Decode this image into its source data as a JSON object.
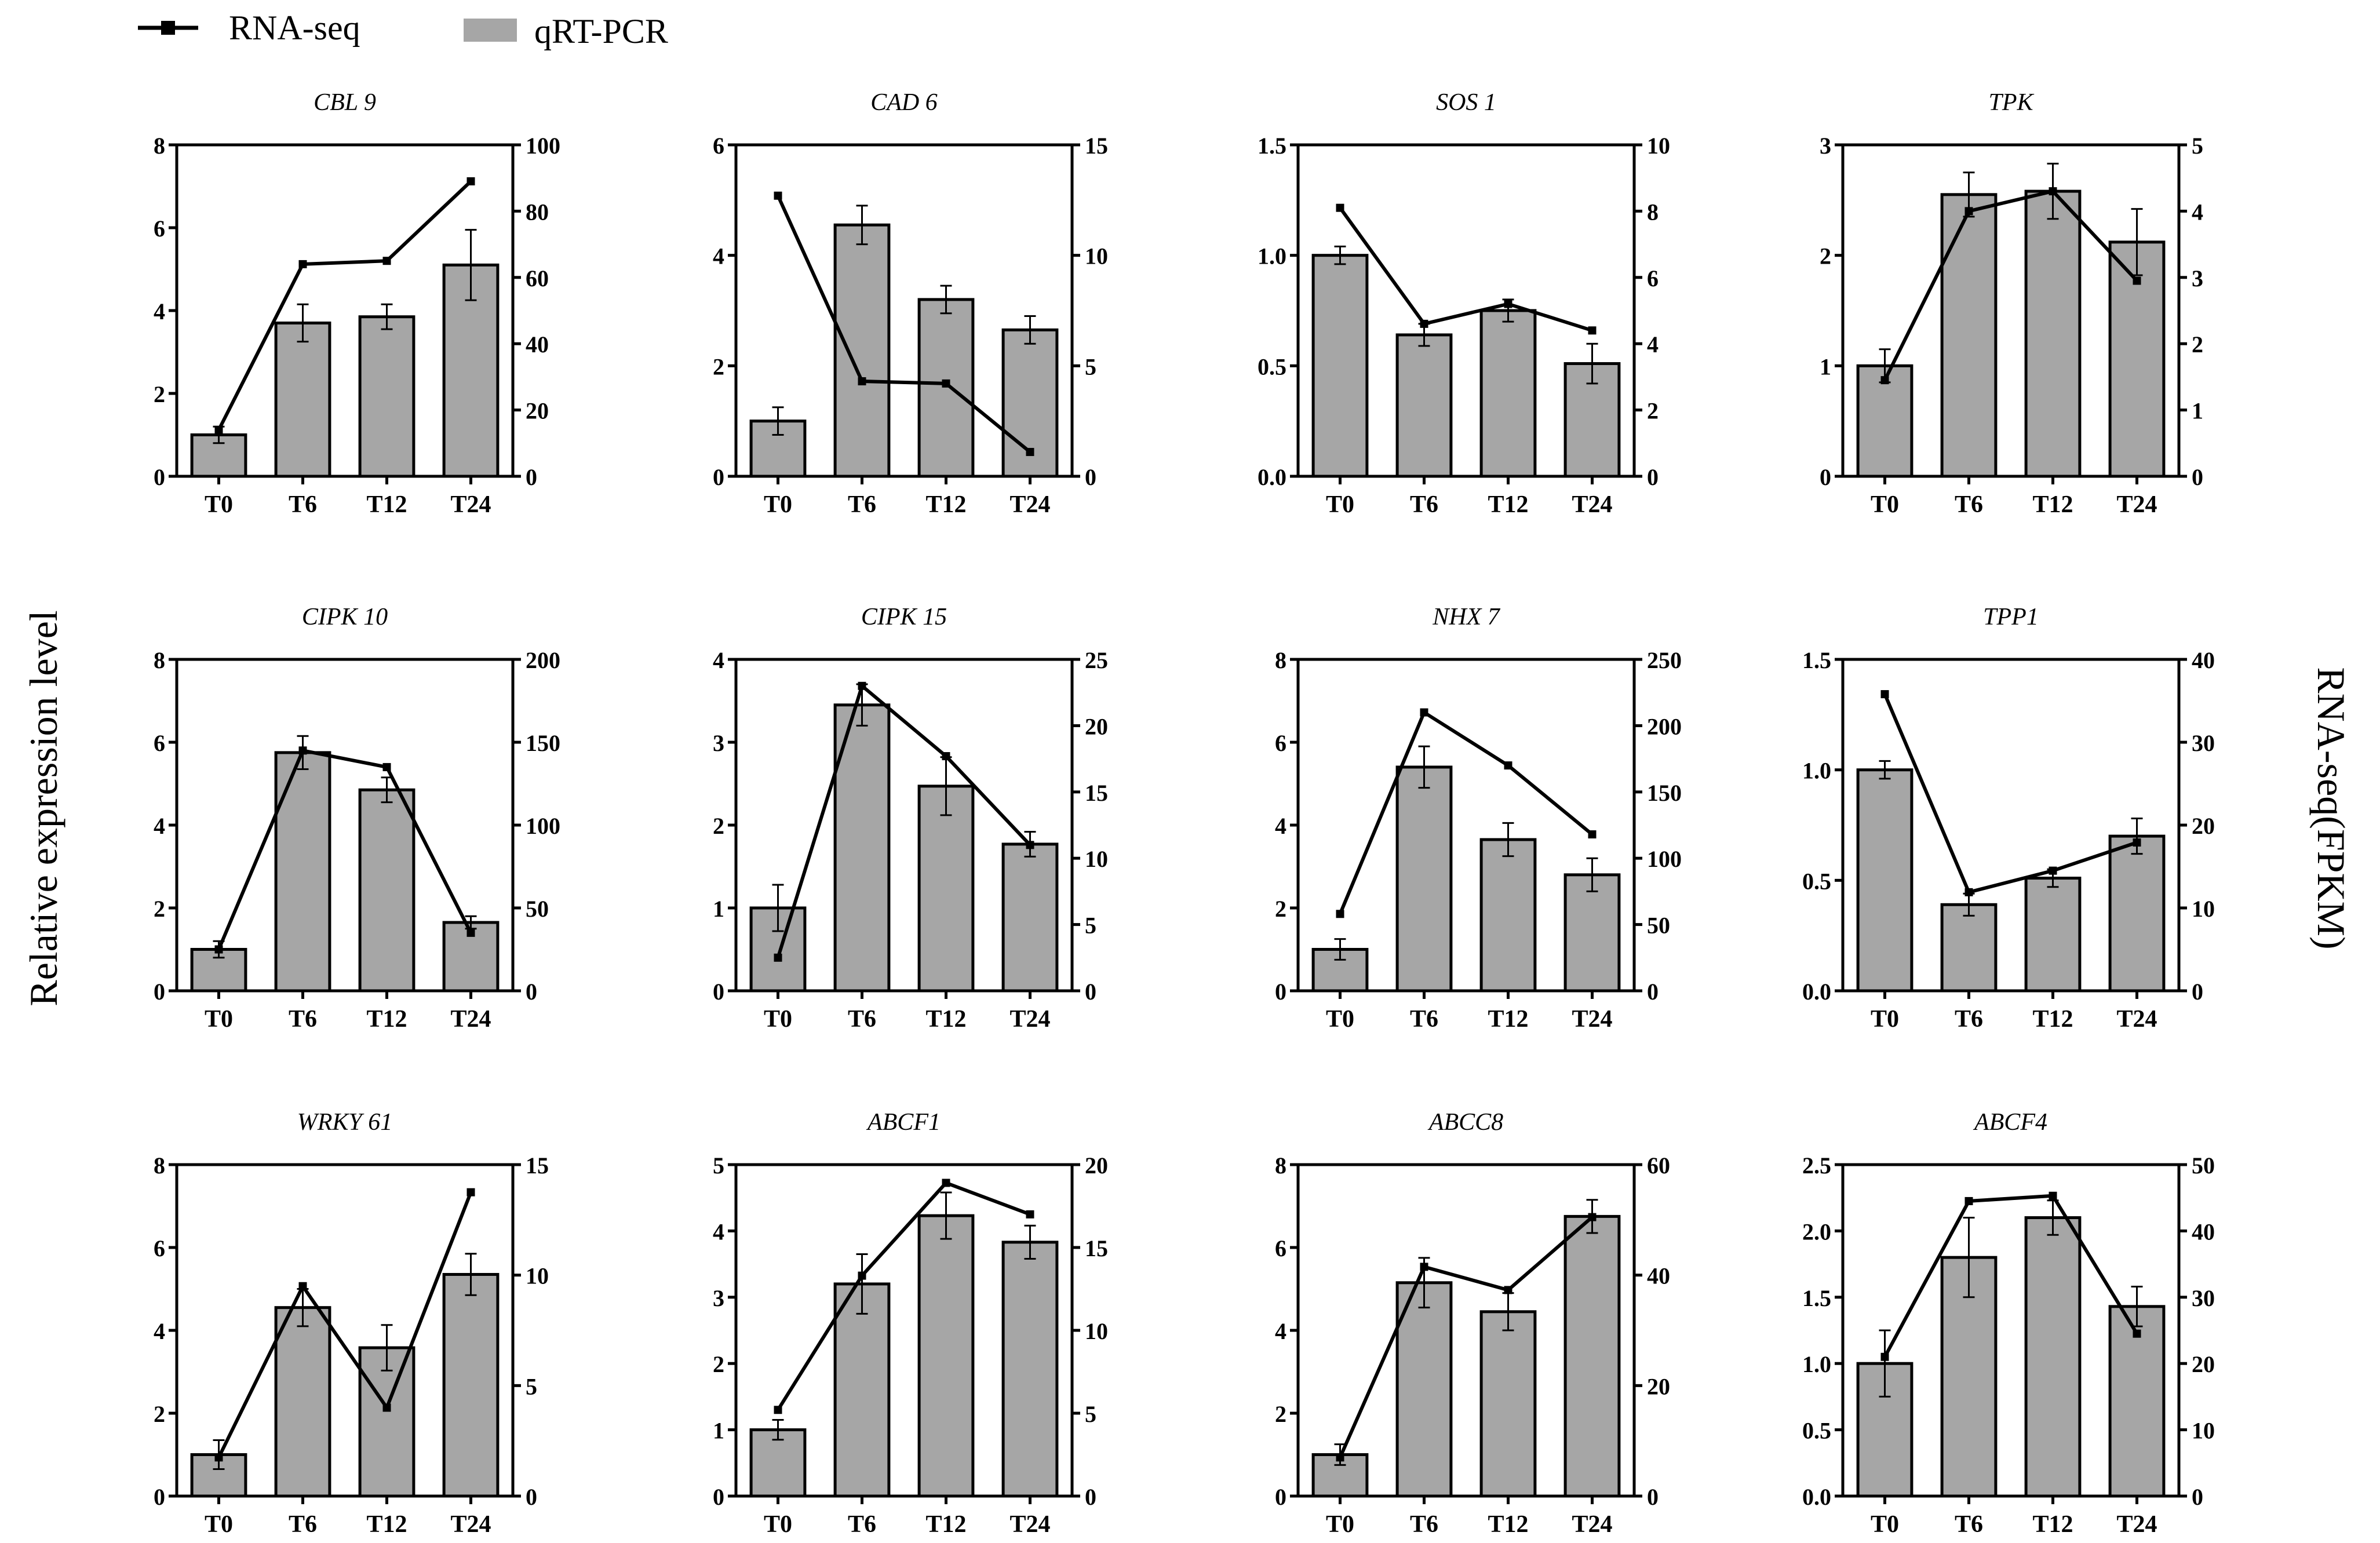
{
  "legend": {
    "line_label": "RNA-seq",
    "bar_label": "qRT-PCR"
  },
  "y_left_label": "Relative expression level",
  "y_right_label": "RNA-seq(FPKM)",
  "colors": {
    "bar": "#a6a6a6",
    "line": "#000000"
  },
  "chart_data": [
    {
      "type": "bar+line",
      "title": "CBL 9",
      "categories": [
        "T0",
        "T6",
        "T12",
        "T24"
      ],
      "series": [
        {
          "name": "qRT-PCR",
          "axis": "left",
          "values": [
            1.0,
            3.7,
            3.85,
            5.1
          ],
          "errors": [
            0.2,
            0.45,
            0.3,
            0.85
          ]
        },
        {
          "name": "RNA-seq",
          "axis": "right",
          "values": [
            14,
            64,
            65,
            89
          ]
        }
      ],
      "ylim_left": [
        0,
        8
      ],
      "yticks_left": [
        0,
        2,
        4,
        6,
        8
      ],
      "ytick_labels_left": [
        "0",
        "2",
        "4",
        "6",
        "8"
      ],
      "ylim_right": [
        0,
        100
      ],
      "yticks_right": [
        0,
        20,
        40,
        60,
        80,
        100
      ],
      "ytick_labels_right": [
        "0",
        "20",
        "40",
        "60",
        "80",
        "100"
      ]
    },
    {
      "type": "bar+line",
      "title": "CAD 6",
      "categories": [
        "T0",
        "T6",
        "T12",
        "T24"
      ],
      "series": [
        {
          "name": "qRT-PCR",
          "axis": "left",
          "values": [
            1.0,
            4.55,
            3.2,
            2.65
          ],
          "errors": [
            0.25,
            0.35,
            0.25,
            0.25
          ]
        },
        {
          "name": "RNA-seq",
          "axis": "right",
          "values": [
            12.7,
            4.3,
            4.2,
            1.1
          ]
        }
      ],
      "ylim_left": [
        0,
        6
      ],
      "yticks_left": [
        0,
        2,
        4,
        6
      ],
      "ytick_labels_left": [
        "0",
        "2",
        "4",
        "6"
      ],
      "ylim_right": [
        0,
        15
      ],
      "yticks_right": [
        0,
        5,
        10,
        15
      ],
      "ytick_labels_right": [
        "0",
        "5",
        "10",
        "15"
      ]
    },
    {
      "type": "bar+line",
      "title": "SOS 1",
      "categories": [
        "T0",
        "T6",
        "T12",
        "T24"
      ],
      "series": [
        {
          "name": "qRT-PCR",
          "axis": "left",
          "values": [
            1.0,
            0.64,
            0.75,
            0.51
          ],
          "errors": [
            0.04,
            0.05,
            0.05,
            0.09
          ]
        },
        {
          "name": "RNA-seq",
          "axis": "right",
          "values": [
            8.1,
            4.6,
            5.2,
            4.4
          ]
        }
      ],
      "ylim_left": [
        0,
        1.5
      ],
      "yticks_left": [
        0,
        0.5,
        1.0,
        1.5
      ],
      "ytick_labels_left": [
        "0.0",
        "0.5",
        "1.0",
        "1.5"
      ],
      "ylim_right": [
        0,
        10
      ],
      "yticks_right": [
        0,
        2,
        4,
        6,
        8,
        10
      ],
      "ytick_labels_right": [
        "0",
        "2",
        "4",
        "6",
        "8",
        "10"
      ]
    },
    {
      "type": "bar+line",
      "title": "TPK",
      "categories": [
        "T0",
        "T6",
        "T12",
        "T24"
      ],
      "series": [
        {
          "name": "qRT-PCR",
          "axis": "left",
          "values": [
            1.0,
            2.55,
            2.58,
            2.12
          ],
          "errors": [
            0.15,
            0.2,
            0.25,
            0.3
          ]
        },
        {
          "name": "RNA-seq",
          "axis": "right",
          "values": [
            1.45,
            4.0,
            4.3,
            2.95
          ]
        }
      ],
      "ylim_left": [
        0,
        3
      ],
      "yticks_left": [
        0,
        1,
        2,
        3
      ],
      "ytick_labels_left": [
        "0",
        "1",
        "2",
        "3"
      ],
      "ylim_right": [
        0,
        5
      ],
      "yticks_right": [
        0,
        1,
        2,
        3,
        4,
        5
      ],
      "ytick_labels_right": [
        "0",
        "1",
        "2",
        "3",
        "4",
        "5"
      ]
    },
    {
      "type": "bar+line",
      "title": "CIPK 10",
      "categories": [
        "T0",
        "T6",
        "T12",
        "T24"
      ],
      "series": [
        {
          "name": "qRT-PCR",
          "axis": "left",
          "values": [
            1.0,
            5.75,
            4.85,
            1.65
          ],
          "errors": [
            0.2,
            0.4,
            0.3,
            0.15
          ]
        },
        {
          "name": "RNA-seq",
          "axis": "right",
          "values": [
            25,
            145,
            135,
            35
          ]
        }
      ],
      "ylim_left": [
        0,
        8
      ],
      "yticks_left": [
        0,
        2,
        4,
        6,
        8
      ],
      "ytick_labels_left": [
        "0",
        "2",
        "4",
        "6",
        "8"
      ],
      "ylim_right": [
        0,
        200
      ],
      "yticks_right": [
        0,
        50,
        100,
        150,
        200
      ],
      "ytick_labels_right": [
        "0",
        "50",
        "100",
        "150",
        "200"
      ]
    },
    {
      "type": "bar+line",
      "title": "CIPK 15",
      "categories": [
        "T0",
        "T6",
        "T12",
        "T24"
      ],
      "series": [
        {
          "name": "qRT-PCR",
          "axis": "left",
          "values": [
            1.0,
            3.45,
            2.47,
            1.77
          ],
          "errors": [
            0.28,
            0.25,
            0.35,
            0.15
          ]
        },
        {
          "name": "RNA-seq",
          "axis": "right",
          "values": [
            2.5,
            23.0,
            17.7,
            11.0
          ]
        }
      ],
      "ylim_left": [
        0,
        4
      ],
      "yticks_left": [
        0,
        1,
        2,
        3,
        4
      ],
      "ytick_labels_left": [
        "0",
        "1",
        "2",
        "3",
        "4"
      ],
      "ylim_right": [
        0,
        25
      ],
      "yticks_right": [
        0,
        5,
        10,
        15,
        20,
        25
      ],
      "ytick_labels_right": [
        "0",
        "5",
        "10",
        "15",
        "20",
        "25"
      ]
    },
    {
      "type": "bar+line",
      "title": "NHX 7",
      "categories": [
        "T0",
        "T6",
        "T12",
        "T24"
      ],
      "series": [
        {
          "name": "qRT-PCR",
          "axis": "left",
          "values": [
            1.0,
            5.4,
            3.65,
            2.8
          ],
          "errors": [
            0.25,
            0.5,
            0.4,
            0.4
          ]
        },
        {
          "name": "RNA-seq",
          "axis": "right",
          "values": [
            58,
            210,
            170,
            118
          ]
        }
      ],
      "ylim_left": [
        0,
        8
      ],
      "yticks_left": [
        0,
        2,
        4,
        6,
        8
      ],
      "ytick_labels_left": [
        "0",
        "2",
        "4",
        "6",
        "8"
      ],
      "ylim_right": [
        0,
        250
      ],
      "yticks_right": [
        0,
        50,
        100,
        150,
        200,
        250
      ],
      "ytick_labels_right": [
        "0",
        "50",
        "100",
        "150",
        "200",
        "250"
      ]
    },
    {
      "type": "bar+line",
      "title": "TPP1",
      "categories": [
        "T0",
        "T6",
        "T12",
        "T24"
      ],
      "series": [
        {
          "name": "qRT-PCR",
          "axis": "left",
          "values": [
            1.0,
            0.39,
            0.51,
            0.7
          ],
          "errors": [
            0.04,
            0.05,
            0.04,
            0.08
          ]
        },
        {
          "name": "RNA-seq",
          "axis": "right",
          "values": [
            35.8,
            11.9,
            14.5,
            17.9
          ]
        }
      ],
      "ylim_left": [
        0,
        1.5
      ],
      "yticks_left": [
        0,
        0.5,
        1.0,
        1.5
      ],
      "ytick_labels_left": [
        "0.0",
        "0.5",
        "1.0",
        "1.5"
      ],
      "ylim_right": [
        0,
        40
      ],
      "yticks_right": [
        0,
        10,
        20,
        30,
        40
      ],
      "ytick_labels_right": [
        "0",
        "10",
        "20",
        "30",
        "40"
      ]
    },
    {
      "type": "bar+line",
      "title": "WRKY 61",
      "categories": [
        "T0",
        "T6",
        "T12",
        "T24"
      ],
      "series": [
        {
          "name": "qRT-PCR",
          "axis": "left",
          "values": [
            1.0,
            4.55,
            3.58,
            5.35
          ],
          "errors": [
            0.35,
            0.45,
            0.55,
            0.5
          ]
        },
        {
          "name": "RNA-seq",
          "axis": "right",
          "values": [
            1.75,
            9.5,
            4.0,
            13.75
          ]
        }
      ],
      "ylim_left": [
        0,
        8
      ],
      "yticks_left": [
        0,
        2,
        4,
        6,
        8
      ],
      "ytick_labels_left": [
        "0",
        "2",
        "4",
        "6",
        "8"
      ],
      "ylim_right": [
        0,
        15
      ],
      "yticks_right": [
        0,
        5,
        10,
        15
      ],
      "ytick_labels_right": [
        "0",
        "5",
        "10",
        "15"
      ]
    },
    {
      "type": "bar+line",
      "title": "ABCF1",
      "categories": [
        "T0",
        "T6",
        "T12",
        "T24"
      ],
      "series": [
        {
          "name": "qRT-PCR",
          "axis": "left",
          "values": [
            1.0,
            3.2,
            4.23,
            3.83
          ],
          "errors": [
            0.15,
            0.45,
            0.35,
            0.25
          ]
        },
        {
          "name": "RNA-seq",
          "axis": "right",
          "values": [
            5.2,
            13.3,
            18.9,
            17.0
          ]
        }
      ],
      "ylim_left": [
        0,
        5
      ],
      "yticks_left": [
        0,
        1,
        2,
        3,
        4,
        5
      ],
      "ytick_labels_left": [
        "0",
        "1",
        "2",
        "3",
        "4",
        "5"
      ],
      "ylim_right": [
        0,
        20
      ],
      "yticks_right": [
        0,
        5,
        10,
        15,
        20
      ],
      "ytick_labels_right": [
        "0",
        "5",
        "10",
        "15",
        "20"
      ]
    },
    {
      "type": "bar+line",
      "title": "ABCC8",
      "categories": [
        "T0",
        "T6",
        "T12",
        "T24"
      ],
      "series": [
        {
          "name": "qRT-PCR",
          "axis": "left",
          "values": [
            1.0,
            5.15,
            4.45,
            6.75
          ],
          "errors": [
            0.25,
            0.6,
            0.45,
            0.4
          ]
        },
        {
          "name": "RNA-seq",
          "axis": "right",
          "values": [
            7,
            41.5,
            37.3,
            50.5
          ]
        }
      ],
      "ylim_left": [
        0,
        8
      ],
      "yticks_left": [
        0,
        2,
        4,
        6,
        8
      ],
      "ytick_labels_left": [
        "0",
        "2",
        "4",
        "6",
        "8"
      ],
      "ylim_right": [
        0,
        60
      ],
      "yticks_right": [
        0,
        20,
        40,
        60
      ],
      "ytick_labels_right": [
        "0",
        "20",
        "40",
        "60"
      ]
    },
    {
      "type": "bar+line",
      "title": "ABCF4",
      "categories": [
        "T0",
        "T6",
        "T12",
        "T24"
      ],
      "series": [
        {
          "name": "qRT-PCR",
          "axis": "left",
          "values": [
            1.0,
            1.8,
            2.1,
            1.43
          ],
          "errors": [
            0.25,
            0.3,
            0.13,
            0.15
          ]
        },
        {
          "name": "RNA-seq",
          "axis": "right",
          "values": [
            21,
            44.5,
            45.3,
            24.5
          ]
        }
      ],
      "ylim_left": [
        0,
        2.5
      ],
      "yticks_left": [
        0,
        0.5,
        1.0,
        1.5,
        2.0,
        2.5
      ],
      "ytick_labels_left": [
        "0.0",
        "0.5",
        "1.0",
        "1.5",
        "2.0",
        "2.5"
      ],
      "ylim_right": [
        0,
        50
      ],
      "yticks_right": [
        0,
        10,
        20,
        30,
        40,
        50
      ],
      "ytick_labels_right": [
        "0",
        "10",
        "20",
        "30",
        "40",
        "50"
      ]
    }
  ]
}
